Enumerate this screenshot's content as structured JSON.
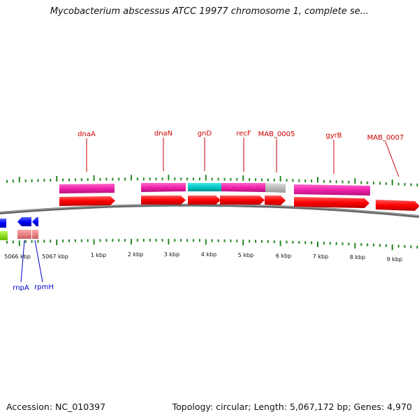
{
  "title": "Mycobacterium abscessus ATCC 19977 chromosome 1, complete se...",
  "accession": "Accession: NC_010397",
  "summary": "Topology: circular; Length: 5,067,172 bp; Genes: 4,970",
  "scale_labels": [
    "5066 kbp",
    "5067 kbp",
    "1 kbp",
    "2 kbp",
    "3 kbp",
    "4 kbp",
    "5 kbp",
    "6 kbp",
    "7 kbp",
    "8 kbp",
    "9 kbp"
  ],
  "gene_labels_top": [
    "dnaA",
    "dnaN",
    "gnD",
    "recF",
    "MAB_0005",
    "gyrB",
    "MAB_0007"
  ],
  "gene_labels_bottom": [
    "rnpA",
    "rpmH"
  ],
  "colors": {
    "forward_gene": "#ff0000",
    "reverse_gene": "#0000ff",
    "cds_pink": "#ee22aa",
    "cds_cyan": "#00c8c8",
    "cds_gray": "#bbbbbb",
    "cds_salmon": "#ee8080",
    "green_feature": "#88ee00",
    "tick": "#228822",
    "label_top": "#cc0000",
    "label_bottom": "#0000cc",
    "backbone": "#777777"
  }
}
